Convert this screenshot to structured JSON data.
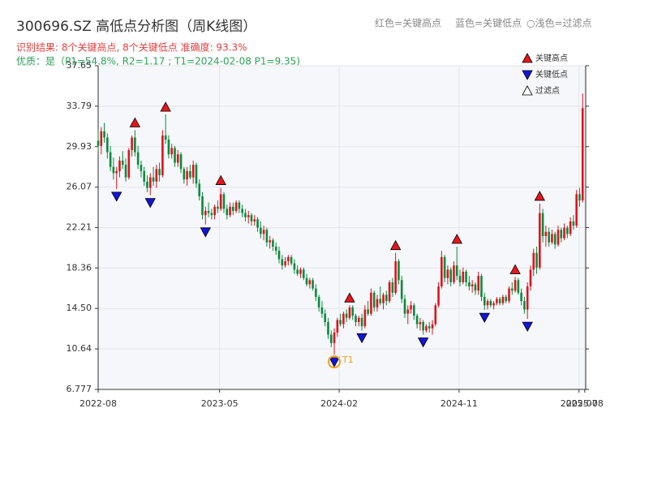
{
  "chart_data": {
    "type": "candlestick",
    "title": "300696.SZ 高低点分析图（周K线图）",
    "subtitle": "识别结果: 8个关键高点, 8个关键低点  准确度: 93.3%",
    "quality": "优质：是（P1=54.8%, R2=1.17 ; T1=2024-02-08 P1=9.35)",
    "color_notes": [
      "红色=关键高点",
      "蓝色=关键低点",
      "○浅色=过滤点"
    ],
    "up_color": "#e0121c",
    "down_color": "#0a8a3c",
    "xlim": [
      0,
      159
    ],
    "xticks": [
      {
        "value": 0,
        "label": "2022-08"
      },
      {
        "value": 39.6,
        "label": "2023-05"
      },
      {
        "value": 78.6,
        "label": "2024-02"
      },
      {
        "value": 117.7,
        "label": "2024-11"
      },
      {
        "value": 156.8,
        "label": "2025-07"
      },
      {
        "value": 158.7,
        "label": "2025-08"
      }
    ],
    "ylim": [
      6.777,
      37.65
    ],
    "yticks": [
      6.777,
      10.64,
      {
        "value": 14.5,
        "label": "14.50"
      },
      18.36,
      22.21,
      26.07,
      29.93,
      33.79,
      37.65
    ],
    "grid": true,
    "ohlc": [
      [
        30.5,
        31.6,
        29.5,
        30.0
      ],
      [
        30.0,
        31.8,
        29.2,
        31.4
      ],
      [
        31.4,
        32.2,
        30.3,
        30.8
      ],
      [
        30.8,
        31.2,
        28.8,
        29.4
      ],
      [
        29.4,
        30.0,
        27.6,
        28.0
      ],
      [
        28.0,
        28.9,
        26.8,
        27.4
      ],
      [
        27.4,
        28.0,
        25.9,
        27.6
      ],
      [
        27.6,
        29.0,
        27.0,
        28.6
      ],
      [
        28.6,
        29.5,
        27.8,
        28.2
      ],
      [
        28.2,
        28.8,
        26.6,
        27.0
      ],
      [
        27.0,
        29.8,
        26.8,
        29.6
      ],
      [
        29.6,
        31.0,
        29.0,
        30.8
      ],
      [
        30.8,
        31.5,
        29.0,
        29.4
      ],
      [
        29.4,
        30.0,
        27.8,
        28.2
      ],
      [
        28.2,
        28.6,
        27.0,
        27.6
      ],
      [
        27.6,
        28.0,
        26.2,
        26.6
      ],
      [
        26.6,
        27.2,
        25.6,
        26.0
      ],
      [
        26.0,
        27.4,
        25.3,
        27.0
      ],
      [
        27.0,
        28.0,
        26.2,
        26.6
      ],
      [
        26.6,
        28.2,
        26.0,
        27.8
      ],
      [
        27.8,
        28.4,
        26.6,
        27.2
      ],
      [
        27.2,
        31.5,
        27.0,
        31.0
      ],
      [
        31.0,
        33.0,
        30.2,
        30.6
      ],
      [
        30.6,
        31.0,
        28.8,
        29.2
      ],
      [
        29.2,
        30.2,
        28.8,
        29.8
      ],
      [
        29.8,
        30.0,
        28.0,
        28.4
      ],
      [
        28.4,
        29.6,
        28.0,
        29.2
      ],
      [
        29.2,
        29.4,
        27.4,
        27.8
      ],
      [
        27.8,
        28.0,
        26.4,
        26.8
      ],
      [
        26.8,
        28.0,
        26.2,
        27.6
      ],
      [
        27.6,
        28.2,
        26.8,
        27.0
      ],
      [
        27.0,
        28.6,
        26.4,
        28.2
      ],
      [
        28.2,
        28.4,
        26.0,
        26.4
      ],
      [
        26.4,
        26.8,
        24.8,
        25.2
      ],
      [
        25.2,
        25.6,
        23.0,
        23.4
      ],
      [
        23.4,
        24.2,
        22.5,
        23.8
      ],
      [
        23.8,
        24.6,
        23.2,
        23.6
      ],
      [
        23.6,
        24.0,
        23.0,
        23.4
      ],
      [
        23.4,
        24.4,
        23.0,
        24.2
      ],
      [
        24.2,
        24.8,
        23.6,
        24.0
      ],
      [
        24.0,
        26.0,
        23.8,
        25.4
      ],
      [
        25.4,
        25.6,
        23.6,
        24.0
      ],
      [
        24.0,
        24.4,
        23.0,
        23.4
      ],
      [
        23.4,
        24.6,
        23.2,
        24.2
      ],
      [
        24.2,
        24.6,
        23.4,
        23.8
      ],
      [
        23.8,
        24.8,
        23.6,
        24.6
      ],
      [
        24.6,
        24.8,
        23.6,
        24.0
      ],
      [
        24.0,
        24.4,
        23.2,
        23.6
      ],
      [
        23.6,
        24.0,
        22.8,
        23.2
      ],
      [
        23.2,
        23.8,
        22.6,
        23.4
      ],
      [
        23.4,
        23.6,
        22.4,
        22.8
      ],
      [
        22.8,
        23.4,
        22.4,
        23.0
      ],
      [
        23.0,
        23.2,
        21.8,
        22.2
      ],
      [
        22.2,
        22.8,
        21.2,
        21.6
      ],
      [
        21.6,
        22.4,
        21.0,
        22.0
      ],
      [
        22.0,
        22.2,
        20.4,
        20.8
      ],
      [
        20.8,
        21.4,
        20.2,
        21.0
      ],
      [
        21.0,
        21.2,
        20.0,
        20.4
      ],
      [
        20.4,
        20.8,
        19.6,
        20.0
      ],
      [
        20.0,
        20.4,
        18.8,
        19.2
      ],
      [
        19.2,
        19.6,
        18.2,
        18.6
      ],
      [
        18.6,
        19.4,
        18.4,
        19.0
      ],
      [
        19.0,
        19.6,
        18.6,
        19.4
      ],
      [
        19.4,
        19.6,
        18.6,
        18.8
      ],
      [
        18.8,
        19.2,
        17.8,
        18.2
      ],
      [
        18.2,
        18.6,
        17.6,
        17.8
      ],
      [
        17.8,
        18.4,
        17.4,
        18.2
      ],
      [
        18.2,
        18.4,
        17.2,
        17.4
      ],
      [
        17.4,
        17.8,
        16.6,
        16.8
      ],
      [
        16.8,
        17.4,
        16.4,
        17.2
      ],
      [
        17.2,
        17.4,
        16.2,
        16.4
      ],
      [
        16.4,
        16.8,
        15.2,
        15.6
      ],
      [
        15.6,
        15.8,
        14.2,
        14.6
      ],
      [
        14.6,
        15.2,
        13.6,
        14.0
      ],
      [
        14.0,
        14.4,
        12.8,
        13.2
      ],
      [
        13.2,
        13.6,
        11.6,
        12.0
      ],
      [
        12.0,
        12.4,
        10.8,
        11.2
      ],
      [
        11.2,
        12.6,
        10.1,
        12.2
      ],
      [
        12.2,
        13.6,
        11.8,
        13.4
      ],
      [
        13.4,
        14.0,
        12.8,
        13.0
      ],
      [
        13.0,
        14.2,
        12.6,
        14.0
      ],
      [
        14.0,
        14.4,
        13.2,
        13.6
      ],
      [
        13.6,
        14.8,
        13.4,
        14.6
      ],
      [
        14.6,
        14.8,
        13.4,
        13.8
      ],
      [
        13.8,
        14.0,
        12.8,
        13.2
      ],
      [
        13.2,
        13.8,
        12.8,
        13.6
      ],
      [
        13.6,
        14.0,
        12.4,
        12.8
      ],
      [
        12.8,
        14.8,
        12.6,
        14.4
      ],
      [
        14.4,
        15.2,
        13.8,
        14.0
      ],
      [
        14.0,
        16.4,
        13.8,
        16.0
      ],
      [
        16.0,
        16.2,
        14.2,
        14.6
      ],
      [
        14.6,
        15.8,
        14.2,
        15.4
      ],
      [
        15.4,
        16.6,
        14.8,
        15.0
      ],
      [
        15.0,
        16.0,
        14.4,
        15.8
      ],
      [
        15.8,
        16.2,
        14.8,
        15.2
      ],
      [
        15.2,
        17.2,
        15.0,
        17.0
      ],
      [
        17.0,
        17.4,
        15.6,
        16.0
      ],
      [
        16.0,
        19.8,
        15.8,
        19.0
      ],
      [
        19.0,
        19.2,
        16.8,
        17.2
      ],
      [
        17.2,
        17.6,
        15.0,
        15.4
      ],
      [
        15.4,
        15.8,
        13.6,
        14.0
      ],
      [
        14.0,
        14.8,
        13.0,
        14.4
      ],
      [
        14.4,
        15.2,
        14.0,
        14.8
      ],
      [
        14.8,
        15.0,
        13.4,
        13.8
      ],
      [
        13.8,
        14.0,
        12.6,
        13.0
      ],
      [
        13.0,
        13.6,
        12.4,
        13.2
      ],
      [
        13.2,
        13.4,
        12.0,
        12.4
      ],
      [
        12.4,
        13.0,
        12.2,
        12.8
      ],
      [
        12.8,
        13.2,
        12.2,
        12.6
      ],
      [
        12.6,
        13.4,
        12.0,
        13.0
      ],
      [
        13.0,
        15.0,
        12.8,
        14.8
      ],
      [
        14.8,
        17.0,
        14.6,
        16.6
      ],
      [
        16.6,
        20.0,
        16.4,
        19.4
      ],
      [
        19.4,
        19.6,
        17.0,
        17.4
      ],
      [
        17.4,
        18.6,
        16.8,
        18.2
      ],
      [
        18.2,
        18.4,
        16.6,
        17.0
      ],
      [
        17.0,
        19.0,
        16.8,
        18.6
      ],
      [
        18.6,
        20.4,
        17.2,
        17.6
      ],
      [
        17.6,
        18.2,
        16.6,
        17.0
      ],
      [
        17.0,
        18.4,
        16.8,
        18.0
      ],
      [
        18.0,
        18.2,
        16.6,
        17.0
      ],
      [
        17.0,
        17.6,
        16.2,
        16.6
      ],
      [
        16.6,
        17.2,
        16.0,
        16.8
      ],
      [
        16.8,
        17.0,
        15.8,
        16.2
      ],
      [
        16.2,
        18.0,
        15.8,
        17.6
      ],
      [
        17.6,
        17.8,
        15.2,
        15.6
      ],
      [
        15.6,
        16.0,
        14.35,
        14.8
      ],
      [
        14.8,
        15.4,
        14.4,
        15.2
      ],
      [
        15.2,
        15.4,
        14.6,
        14.8
      ],
      [
        14.8,
        15.2,
        14.4,
        15.0
      ],
      [
        15.0,
        15.6,
        14.8,
        15.4
      ],
      [
        15.4,
        15.6,
        14.8,
        15.0
      ],
      [
        15.0,
        15.8,
        14.8,
        15.6
      ],
      [
        15.6,
        15.8,
        15.0,
        15.2
      ],
      [
        15.2,
        16.6,
        15.0,
        16.4
      ],
      [
        16.4,
        17.0,
        15.8,
        16.2
      ],
      [
        16.2,
        17.5,
        16.0,
        17.2
      ],
      [
        17.2,
        17.4,
        15.8,
        16.0
      ],
      [
        16.0,
        16.4,
        14.8,
        15.2
      ],
      [
        15.2,
        15.6,
        14.0,
        14.4
      ],
      [
        14.4,
        17.0,
        13.5,
        16.6
      ],
      [
        16.6,
        18.6,
        16.2,
        18.2
      ],
      [
        18.2,
        20.2,
        17.6,
        19.8
      ],
      [
        19.8,
        20.4,
        17.8,
        18.4
      ],
      [
        18.4,
        24.5,
        18.2,
        23.6
      ],
      [
        23.6,
        24.0,
        20.8,
        21.4
      ],
      [
        21.4,
        22.4,
        20.4,
        21.8
      ],
      [
        21.8,
        22.2,
        20.4,
        20.8
      ],
      [
        20.8,
        22.0,
        20.6,
        21.6
      ],
      [
        21.6,
        21.8,
        20.2,
        20.6
      ],
      [
        20.6,
        22.4,
        20.4,
        22.0
      ],
      [
        22.0,
        22.2,
        20.8,
        21.2
      ],
      [
        21.2,
        22.6,
        21.0,
        22.2
      ],
      [
        22.2,
        22.4,
        21.2,
        21.6
      ],
      [
        21.6,
        23.2,
        21.4,
        22.8
      ],
      [
        22.8,
        23.4,
        22.0,
        22.4
      ],
      [
        22.4,
        25.8,
        22.2,
        25.4
      ],
      [
        25.4,
        26.0,
        24.2,
        24.8
      ],
      [
        24.8,
        35.0,
        24.6,
        33.6
      ]
    ],
    "markers": [
      {
        "name": "关键高点",
        "color": "#e8141c",
        "shape": "up",
        "x": [
          12,
          22,
          40,
          82,
          97,
          117,
          136,
          144
        ],
        "values": [
          31.5,
          33.0,
          26.0,
          14.8,
          19.8,
          20.4,
          17.5,
          24.5
        ]
      },
      {
        "name": "关键低点",
        "color": "#1414d8",
        "shape": "down",
        "x": [
          6,
          17,
          35,
          77,
          86,
          106,
          126,
          140
        ],
        "values": [
          25.9,
          25.3,
          22.5,
          10.1,
          12.4,
          12.0,
          14.35,
          13.5
        ]
      },
      {
        "name": "过滤点",
        "color": "#ffffff",
        "shape": "up",
        "x": [],
        "values": []
      }
    ],
    "annotations": [
      {
        "text": "T1",
        "x": 77,
        "y": 10.1,
        "color": "#f0a020"
      }
    ]
  }
}
